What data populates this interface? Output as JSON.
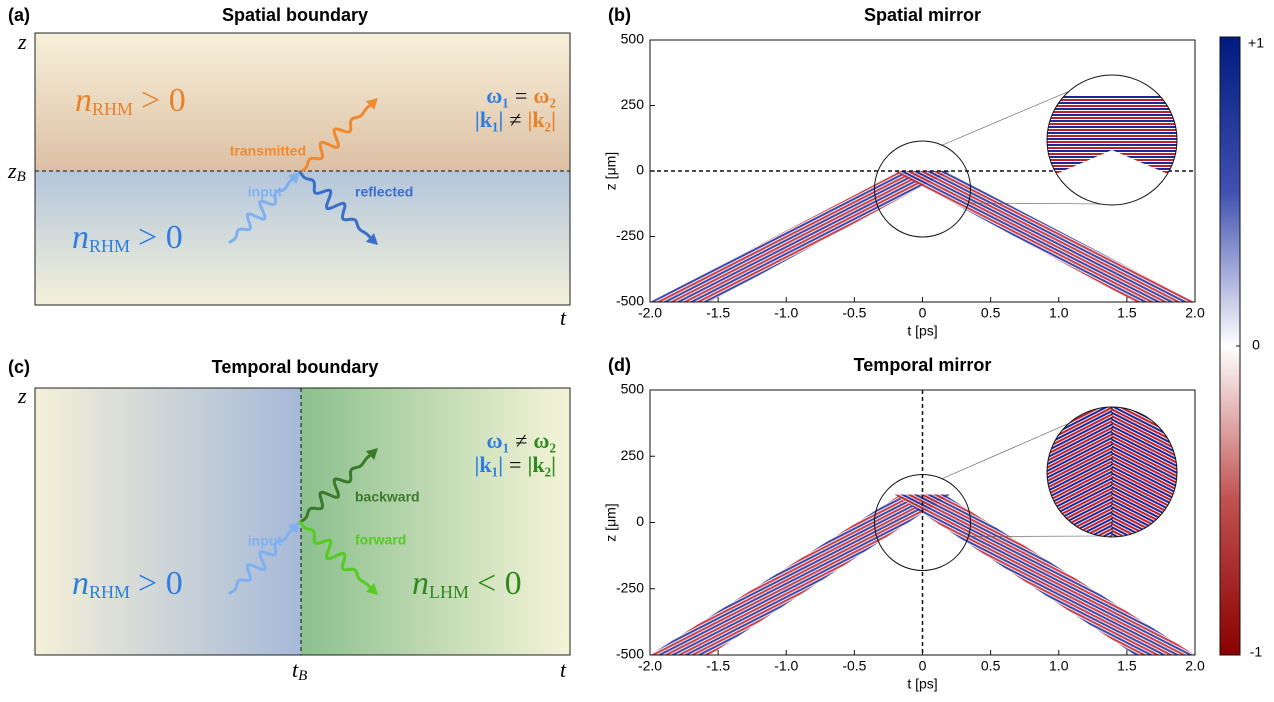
{
  "panels": {
    "a": {
      "label": "(a)",
      "title": "Spatial boundary",
      "z_axis": "z",
      "t_axis": "t",
      "boundary_label": "z",
      "boundary_sub": "B",
      "upper": {
        "n": "n",
        "sub": "RHM",
        "rel": "> 0"
      },
      "lower": {
        "n": "n",
        "sub": "RHM",
        "rel": "> 0"
      },
      "relation1": [
        "ω₁",
        "=",
        "ω₂"
      ],
      "relation2": [
        "|k₁|",
        "≠",
        "|k₂|"
      ],
      "waves": [
        "input",
        "transmitted",
        "reflected"
      ]
    },
    "c": {
      "label": "(c)",
      "title": "Temporal boundary",
      "z_axis": "z",
      "t_axis": "t",
      "boundary_label": "t",
      "boundary_sub": "B",
      "left": {
        "n": "n",
        "sub": "RHM",
        "rel": "> 0"
      },
      "right": {
        "n": "n",
        "sub": "LHM",
        "rel": "< 0"
      },
      "relation1": [
        "ω₁",
        "≠",
        "ω₂"
      ],
      "relation2": [
        "|k₁|",
        "=",
        "|k₂|"
      ],
      "waves": [
        "input",
        "backward",
        "forward"
      ]
    }
  },
  "chart_data": [
    {
      "type": "heatmap",
      "label": "(b)",
      "title": "Spatial mirror",
      "xlabel": "t [ps]",
      "ylabel": "z [μm]",
      "xlim": [
        -2,
        2
      ],
      "ylim": [
        -500,
        500
      ],
      "xticks": [
        {
          "value": -2,
          "label": "-2.0"
        },
        -1.5,
        {
          "value": -1,
          "label": "-1.0"
        },
        -0.5,
        0,
        0.5,
        {
          "value": 1,
          "label": "1.0"
        },
        1.5,
        {
          "value": 2,
          "label": "2.0"
        }
      ],
      "yticks": [
        -500,
        -250,
        0,
        250,
        500
      ]
    },
    {
      "type": "heatmap",
      "label": "(d)",
      "title": "Temporal mirror",
      "xlabel": "t [ps]",
      "ylabel": "z [μm]",
      "xlim": [
        -2,
        2
      ],
      "ylim": [
        -500,
        500
      ],
      "xticks": [
        {
          "value": -2,
          "label": "-2.0"
        },
        -1.5,
        {
          "value": -1,
          "label": "-1.0"
        },
        -0.5,
        0,
        0.5,
        {
          "value": 1,
          "label": "1.0"
        },
        1.5,
        {
          "value": 2,
          "label": "2.0"
        }
      ],
      "yticks": [
        -500,
        -250,
        0,
        250,
        500
      ]
    }
  ],
  "colorbar": {
    "lim": [
      -1,
      1
    ],
    "ticks": [
      {
        "value": 1,
        "label": "+1"
      },
      0,
      -1
    ]
  }
}
